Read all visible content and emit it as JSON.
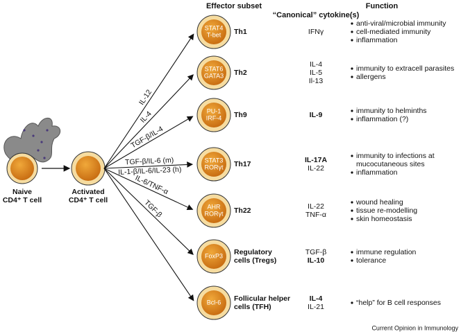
{
  "headers": {
    "subset": "Effector subset",
    "cytokines": "“Canonical” cytokine(s)",
    "function": "Function"
  },
  "naive": {
    "label": [
      "Naive",
      "CD4⁺ T cell"
    ]
  },
  "activated": {
    "label": [
      "Activated",
      "CD4⁺ T cell"
    ]
  },
  "subsets": [
    {
      "tf": [
        "STAT4",
        "T-bet"
      ],
      "name": [
        "Th1"
      ],
      "signals": [
        "IL-12"
      ],
      "cytokines": [
        "IFNγ"
      ],
      "functions": [
        "anti-viral/microbial immunity",
        "cell-mediated immunity",
        "inflammation"
      ]
    },
    {
      "tf": [
        "STAT6",
        "GATA3"
      ],
      "name": [
        "Th2"
      ],
      "signals": [
        "IL-4"
      ],
      "cytokines": [
        "IL-4",
        "IL-5",
        "Il-13"
      ],
      "functions": [
        "immunity to extracell parasites",
        "allergens"
      ]
    },
    {
      "tf": [
        "PU-1",
        "IRF-4"
      ],
      "name": [
        "Th9"
      ],
      "signals": [
        "TGF-β/IL-4"
      ],
      "cytokines": [
        "IL-9"
      ],
      "functions": [
        "immunity to helminths",
        "inflammation (?)"
      ]
    },
    {
      "tf": [
        "STAT3",
        "RORγt"
      ],
      "name": [
        "Th17"
      ],
      "signals": [
        "TGF-β/IL-6 (m)",
        "IL-1-β/IL-6/IL-23 (h)"
      ],
      "cytokines": [
        "IL-17A",
        "IL-22"
      ],
      "functions": [
        "immunity to infections at",
        "mucocutaneous sites",
        "inflammation"
      ]
    },
    {
      "tf": [
        "AHR",
        "RORγt"
      ],
      "name": [
        "Th22"
      ],
      "signals": [
        "IL-6/TNF-α"
      ],
      "cytokines": [
        "IL-22",
        "TNF-α"
      ],
      "functions": [
        "wound healing",
        "tissue re-modelling",
        "skin homeostasis"
      ]
    },
    {
      "tf": [
        "FoxP3"
      ],
      "name": [
        "Regulatory",
        "cells (Tregs)"
      ],
      "signals": [
        "TGF-β"
      ],
      "cytokines": [
        "TGF-β",
        "IL-10"
      ],
      "functions": [
        "immune regulation",
        "tolerance"
      ]
    },
    {
      "tf": [
        "Bcl-6"
      ],
      "name": [
        "Follicular helper",
        "cells (TFH)"
      ],
      "signals": [],
      "cytokines": [
        "IL-4",
        "IL-21"
      ],
      "functions": [
        "“help” for B cell responses"
      ]
    }
  ],
  "footer": "Current Opinion in Immunology"
}
